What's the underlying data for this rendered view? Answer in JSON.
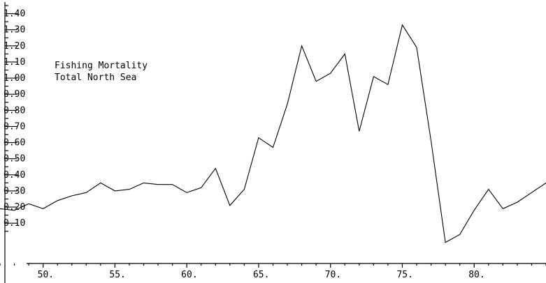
{
  "chart_data": {
    "type": "line",
    "title_lines": [
      "Fishing Mortality",
      "Total North Sea"
    ],
    "xlabel": "",
    "ylabel": "",
    "xlim": [
      47,
      85
    ],
    "ylim": [
      -0.15,
      1.45
    ],
    "x_ticks": [
      50,
      55,
      60,
      65,
      70,
      75,
      80
    ],
    "x_tick_labels": [
      "50.",
      "55.",
      "60.",
      "65.",
      "70.",
      "75.",
      "80."
    ],
    "y_ticks": [
      0.1,
      0.2,
      0.3,
      0.4,
      0.5,
      0.6,
      0.7,
      0.8,
      0.9,
      1.0,
      1.1,
      1.2,
      1.3,
      1.4
    ],
    "y_tick_labels": [
      "0.10",
      "0.20",
      "0.30",
      "0.40",
      "0.50",
      "0.60",
      "0.70",
      "0.80",
      "0.90",
      "1.00",
      "1.10",
      "1.20",
      "1.30",
      "1.40"
    ],
    "grid": false,
    "series": [
      {
        "x": [
          47,
          48,
          49,
          50,
          51,
          52,
          53,
          54,
          55,
          56,
          57,
          58,
          59,
          60,
          61,
          62,
          63,
          64,
          65,
          66,
          67,
          68,
          69,
          70,
          71,
          72,
          73,
          74,
          75,
          76,
          77,
          78,
          79,
          80,
          81,
          82,
          83,
          84,
          85
        ],
        "values": [
          0.19,
          0.18,
          0.22,
          0.19,
          0.24,
          0.27,
          0.29,
          0.35,
          0.3,
          0.31,
          0.35,
          0.34,
          0.34,
          0.29,
          0.32,
          0.44,
          0.21,
          0.31,
          0.63,
          0.57,
          0.84,
          1.2,
          0.98,
          1.03,
          1.15,
          0.67,
          1.01,
          0.96,
          1.33,
          1.19,
          0.61,
          -0.02,
          0.03,
          0.18,
          0.31,
          0.19,
          0.23,
          0.29,
          0.35
        ]
      }
    ]
  }
}
